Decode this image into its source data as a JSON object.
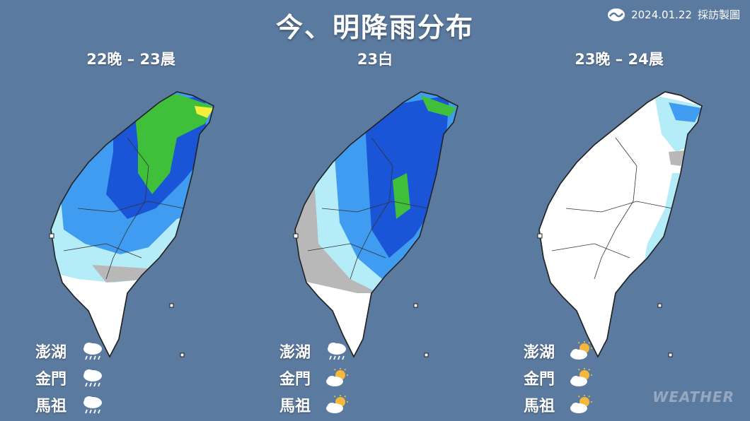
{
  "title": "今、明降雨分布",
  "credit": {
    "date": "2024.01.22",
    "text": "採訪製圖",
    "logo_icon": "weather-logo-icon"
  },
  "panels": [
    {
      "label": "22晚 – 23晨",
      "rain_extent": "north-central-heavy",
      "islands": [
        {
          "name": "澎湖",
          "icon": "rain-cloud-icon"
        },
        {
          "name": "金門",
          "icon": "rain-cloud-icon"
        },
        {
          "name": "馬祖",
          "icon": "rain-cloud-icon"
        }
      ]
    },
    {
      "label": "23白",
      "rain_extent": "central-heavy",
      "islands": [
        {
          "name": "澎湖",
          "icon": "rain-cloud-icon"
        },
        {
          "name": "金門",
          "icon": "sun-cloud-icon"
        },
        {
          "name": "馬祖",
          "icon": "sun-cloud-icon"
        }
      ]
    },
    {
      "label": "23晚 – 24晨",
      "rain_extent": "east-light",
      "islands": [
        {
          "name": "澎湖",
          "icon": "sun-cloud-icon"
        },
        {
          "name": "金門",
          "icon": "sun-cloud-icon"
        },
        {
          "name": "馬祖",
          "icon": "sun-cloud-icon"
        }
      ]
    }
  ],
  "watermark": "WEATHER",
  "colors": {
    "background": "#5b7aa0",
    "land": "#ffffff",
    "light_rain": "#b4ecf7",
    "rain": "#3f9cf0",
    "heavy_rain": "#1a55d8",
    "very_heavy": "#3fbf3a",
    "torrential": "#f4ef3a",
    "trace": "#b8b8b8"
  }
}
